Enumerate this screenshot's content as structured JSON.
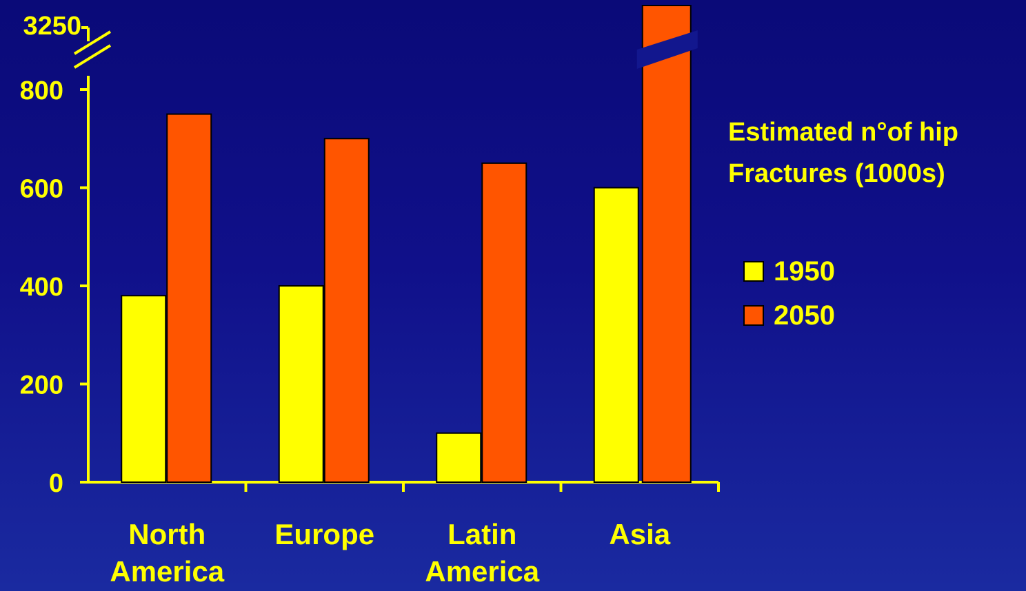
{
  "chart_data": {
    "type": "bar",
    "categories": [
      "North\nAmerica",
      "Europe",
      "Latin\nAmerica",
      "Asia"
    ],
    "series": [
      {
        "name": "1950",
        "values": [
          380,
          400,
          100,
          600
        ],
        "color": "#ffff00"
      },
      {
        "name": "2050",
        "values": [
          750,
          700,
          650,
          3250
        ],
        "color": "#ff5500"
      }
    ],
    "title": "Estimated n°of hip Fractures (1000s)",
    "xlabel": "",
    "ylabel": "",
    "ylim": [
      0,
      800
    ],
    "yticks": [
      "0",
      "200",
      "400",
      "600",
      "800"
    ],
    "axis_break_label": "3250",
    "axis_break": true,
    "grid": false,
    "legend_position": "right",
    "axis_color": "#ffff00"
  },
  "legend": {
    "title_line1": "Estimated n°of hip",
    "title_line2": "Fractures (1000s)",
    "items": [
      {
        "label": "1950",
        "color": "#ffff00"
      },
      {
        "label": "2050",
        "color": "#ff5500"
      }
    ]
  }
}
